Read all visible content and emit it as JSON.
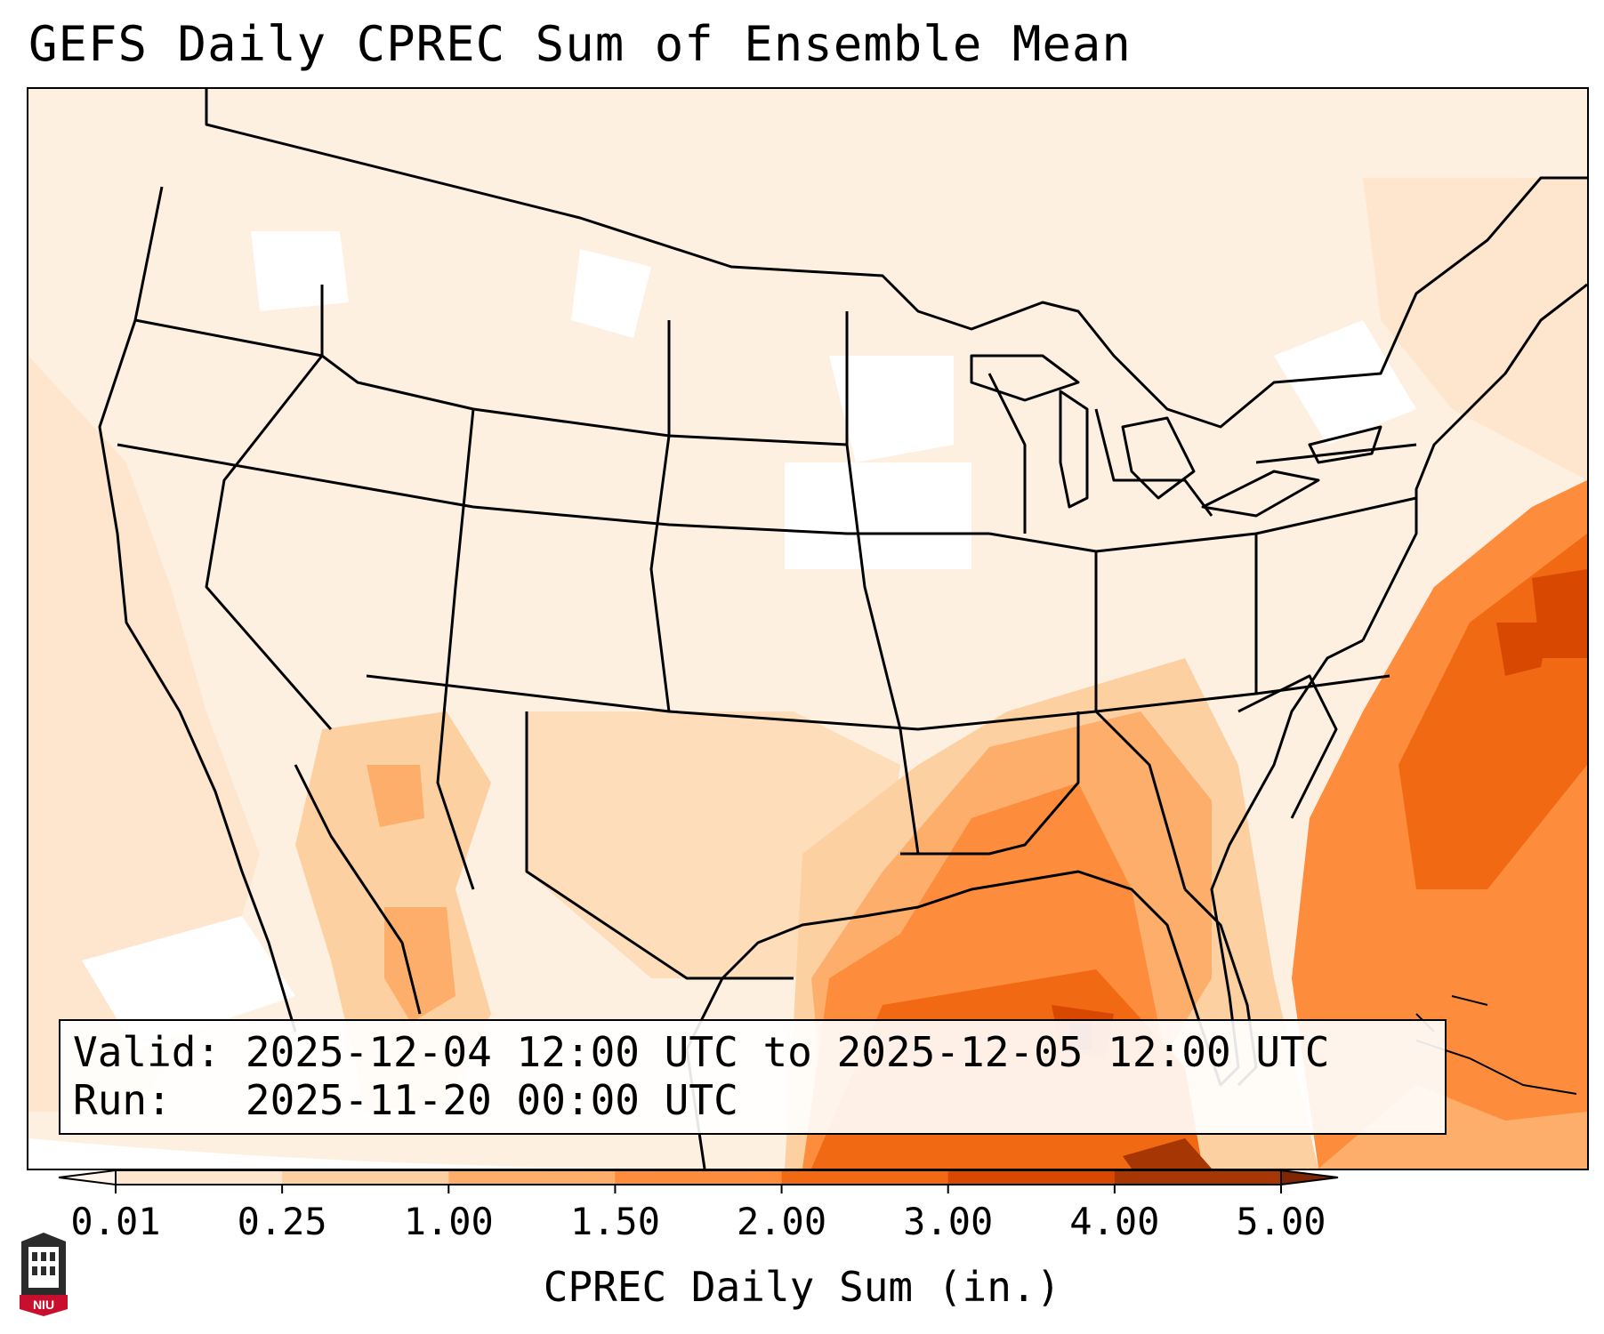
{
  "title": "GEFS Daily CPREC Sum of Ensemble Mean",
  "info": {
    "valid_label": "Valid:",
    "valid_value": "2025-12-04 12:00 UTC to 2025-12-05 12:00 UTC",
    "run_label": "Run:",
    "run_value": "2025-11-20 00:00 UTC"
  },
  "colorbar": {
    "label": "CPREC Daily Sum (in.)",
    "ticks": [
      "0.01",
      "0.25",
      "1.00",
      "1.50",
      "2.00",
      "3.00",
      "4.00",
      "5.00"
    ],
    "colors": [
      "#fff5eb",
      "#fee6ce",
      "#fdd0a2",
      "#fdae6b",
      "#fd8d3c",
      "#f16913",
      "#d94801",
      "#a63603",
      "#7f2704"
    ],
    "extend": "both"
  },
  "logo": {
    "text": "NIU",
    "color": "#c8102e"
  }
}
